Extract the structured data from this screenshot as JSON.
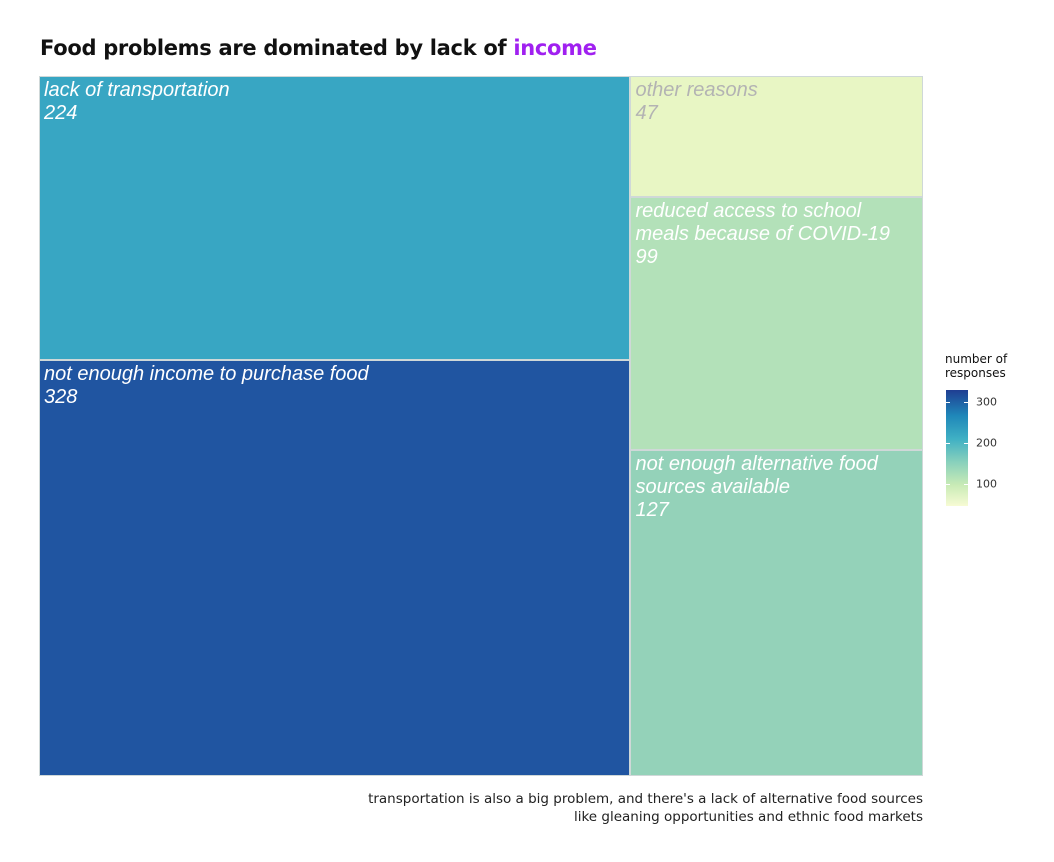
{
  "title": {
    "prefix": "Food problems are dominated by lack of ",
    "highlight": "income",
    "highlight_color": "#a020f0"
  },
  "caption": {
    "line1": "transportation is also a big problem, and there's a lack of alternative food sources",
    "line2": "like gleaning opportunities and ethnic food markets"
  },
  "chart_data": {
    "type": "treemap",
    "title": "Food problems are dominated by lack of income",
    "items": [
      {
        "label": "not enough income to purchase food",
        "value": 328,
        "fill": "#2055a1",
        "text_color": "#ffffff"
      },
      {
        "label": "lack of transportation",
        "value": 224,
        "fill": "#38a6c3",
        "text_color": "#ffffff"
      },
      {
        "label": "not enough alternative food sources available",
        "value": 127,
        "fill": "#94d2b9",
        "text_color": "#ffffff"
      },
      {
        "label": "reduced access to school meals because of COVID-19",
        "value": 99,
        "fill": "#b3e1b9",
        "text_color": "#ffffff"
      },
      {
        "label": "other reasons",
        "value": 47,
        "fill": "#e8f6c4",
        "text_color": "#b3b3b3"
      }
    ],
    "legend": {
      "title": "number of responses",
      "ticks": [
        100,
        200,
        300
      ],
      "range": [
        47,
        328
      ]
    }
  }
}
